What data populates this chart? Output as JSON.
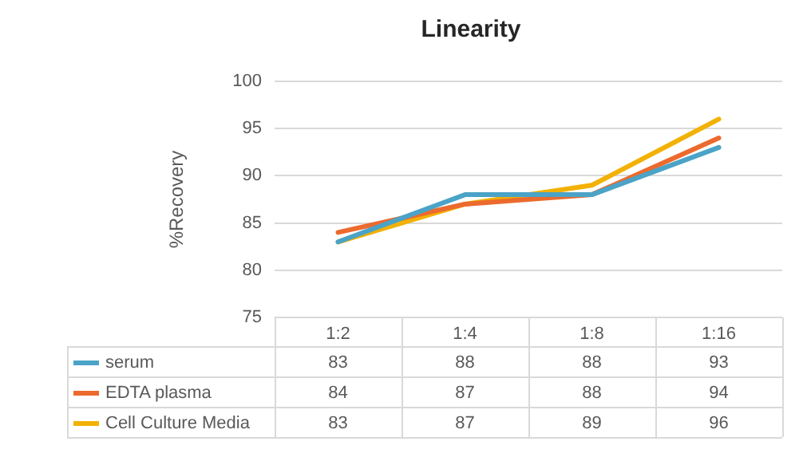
{
  "chart_data": {
    "type": "line",
    "title": "Linearity",
    "ylabel": "%Recovery",
    "categories": [
      "1:2",
      "1:4",
      "1:8",
      "1:16"
    ],
    "series": [
      {
        "name": "serum",
        "color": "#4ba3c7",
        "values": [
          83,
          88,
          88,
          93
        ]
      },
      {
        "name": "EDTA plasma",
        "color": "#ec6a2e",
        "values": [
          84,
          87,
          88,
          94
        ]
      },
      {
        "name": "Cell Culture Media",
        "color": "#f2b105",
        "values": [
          83,
          87,
          89,
          96
        ]
      }
    ],
    "ylim": [
      75,
      100
    ],
    "yticks": [
      75,
      80,
      85,
      90,
      95,
      100
    ],
    "grid": "y",
    "legend": "bottom",
    "data_labels": true,
    "marker": "none",
    "line_style": "solid"
  }
}
